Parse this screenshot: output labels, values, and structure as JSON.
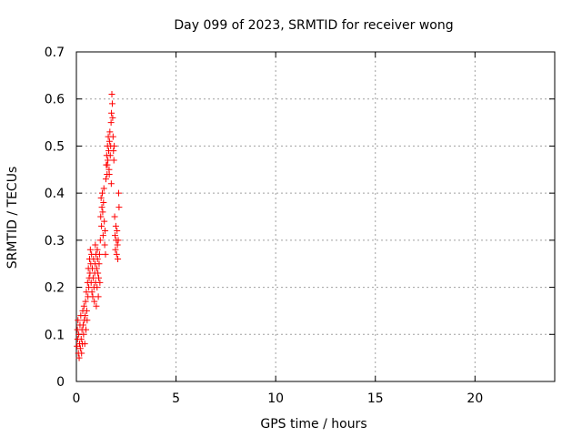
{
  "chart_data": {
    "type": "scatter",
    "title": "Day 099 of 2023, SRMTID for receiver wong",
    "xlabel": "GPS time / hours",
    "ylabel": "SRMTID / TECUs",
    "xlim": [
      0,
      24
    ],
    "ylim": [
      0,
      0.7
    ],
    "xticks": [
      0,
      5,
      10,
      15,
      20
    ],
    "xtick_labels": [
      "0",
      "5",
      "10",
      "15",
      "20"
    ],
    "yticks": [
      0,
      0.1,
      0.2,
      0.3,
      0.4,
      0.5,
      0.6,
      0.7
    ],
    "ytick_labels": [
      "0",
      "0.1",
      "0.2",
      "0.3",
      "0.4",
      "0.5",
      "0.6",
      "0.7"
    ],
    "grid": true,
    "marker": "+",
    "color": "#ff0000",
    "series": [
      {
        "points": [
          [
            0.03,
            0.075
          ],
          [
            0.05,
            0.11
          ],
          [
            0.06,
            0.09
          ],
          [
            0.08,
            0.13
          ],
          [
            0.1,
            0.06
          ],
          [
            0.12,
            0.1
          ],
          [
            0.14,
            0.05
          ],
          [
            0.16,
            0.08
          ],
          [
            0.18,
            0.12
          ],
          [
            0.2,
            0.07
          ],
          [
            0.22,
            0.14
          ],
          [
            0.24,
            0.09
          ],
          [
            0.26,
            0.06
          ],
          [
            0.28,
            0.11
          ],
          [
            0.3,
            0.08
          ],
          [
            0.32,
            0.15
          ],
          [
            0.34,
            0.12
          ],
          [
            0.36,
            0.1
          ],
          [
            0.38,
            0.16
          ],
          [
            0.4,
            0.13
          ],
          [
            0.42,
            0.08
          ],
          [
            0.44,
            0.14
          ],
          [
            0.46,
            0.17
          ],
          [
            0.48,
            0.11
          ],
          [
            0.5,
            0.19
          ],
          [
            0.52,
            0.15
          ],
          [
            0.54,
            0.13
          ],
          [
            0.56,
            0.21
          ],
          [
            0.58,
            0.18
          ],
          [
            0.6,
            0.24
          ],
          [
            0.62,
            0.2
          ],
          [
            0.64,
            0.22
          ],
          [
            0.66,
            0.26
          ],
          [
            0.68,
            0.23
          ],
          [
            0.7,
            0.28
          ],
          [
            0.72,
            0.25
          ],
          [
            0.74,
            0.21
          ],
          [
            0.76,
            0.27
          ],
          [
            0.78,
            0.19
          ],
          [
            0.8,
            0.24
          ],
          [
            0.82,
            0.18
          ],
          [
            0.84,
            0.22
          ],
          [
            0.86,
            0.26
          ],
          [
            0.88,
            0.2
          ],
          [
            0.9,
            0.17
          ],
          [
            0.92,
            0.23
          ],
          [
            0.94,
            0.25
          ],
          [
            0.96,
            0.21
          ],
          [
            0.98,
            0.27
          ],
          [
            1.0,
            0.16
          ],
          [
            1.02,
            0.24
          ],
          [
            1.04,
            0.2
          ],
          [
            1.06,
            0.26
          ],
          [
            1.08,
            0.23
          ],
          [
            1.1,
            0.18
          ],
          [
            1.12,
            0.22
          ],
          [
            1.14,
            0.25
          ],
          [
            1.16,
            0.27
          ],
          [
            1.18,
            0.21
          ],
          [
            1.2,
            0.3
          ],
          [
            1.22,
            0.35
          ],
          [
            1.24,
            0.39
          ],
          [
            1.26,
            0.33
          ],
          [
            1.28,
            0.37
          ],
          [
            1.3,
            0.4
          ],
          [
            1.32,
            0.36
          ],
          [
            1.34,
            0.31
          ],
          [
            1.36,
            0.38
          ],
          [
            1.38,
            0.41
          ],
          [
            1.4,
            0.34
          ],
          [
            1.42,
            0.29
          ],
          [
            1.44,
            0.32
          ],
          [
            1.46,
            0.27
          ],
          [
            1.48,
            0.43
          ],
          [
            1.5,
            0.46
          ],
          [
            1.52,
            0.48
          ],
          [
            1.54,
            0.44
          ],
          [
            1.56,
            0.5
          ],
          [
            1.58,
            0.47
          ],
          [
            1.6,
            0.52
          ],
          [
            1.62,
            0.49
          ],
          [
            1.64,
            0.45
          ],
          [
            1.66,
            0.51
          ],
          [
            1.68,
            0.53
          ],
          [
            1.7,
            0.48
          ],
          [
            1.72,
            0.5
          ],
          [
            1.74,
            0.55
          ],
          [
            1.76,
            0.57
          ],
          [
            1.78,
            0.61
          ],
          [
            1.8,
            0.59
          ],
          [
            1.82,
            0.56
          ],
          [
            1.84,
            0.52
          ],
          [
            1.86,
            0.49
          ],
          [
            1.88,
            0.47
          ],
          [
            1.9,
            0.5
          ],
          [
            1.92,
            0.35
          ],
          [
            1.94,
            0.31
          ],
          [
            1.96,
            0.28
          ],
          [
            1.98,
            0.33
          ],
          [
            2.0,
            0.3
          ],
          [
            2.02,
            0.27
          ],
          [
            2.04,
            0.32
          ],
          [
            2.06,
            0.29
          ],
          [
            2.08,
            0.26
          ],
          [
            2.1,
            0.3
          ],
          [
            2.12,
            0.4
          ],
          [
            2.14,
            0.37
          ],
          [
            1.75,
            0.42
          ],
          [
            1.65,
            0.44
          ],
          [
            1.55,
            0.46
          ],
          [
            0.95,
            0.29
          ],
          [
            1.05,
            0.28
          ]
        ]
      }
    ]
  }
}
